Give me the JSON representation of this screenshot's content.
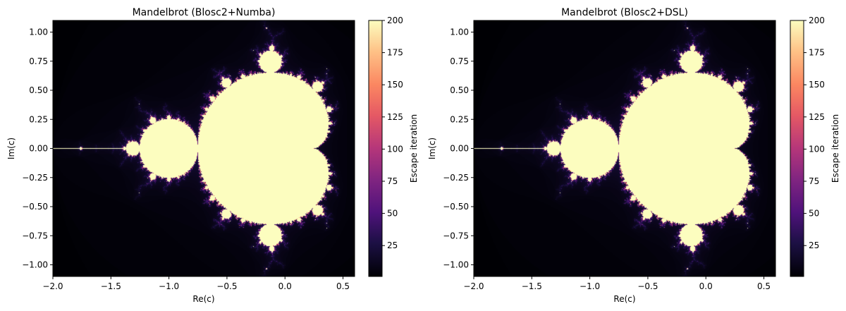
{
  "chart_data": [
    {
      "type": "heatmap",
      "title": "Mandelbrot (Blosc2+Numba)",
      "xlabel": "Re(c)",
      "ylabel": "Im(c)",
      "xlim": [
        -2.0,
        0.6
      ],
      "ylim": [
        -1.1,
        1.1
      ],
      "xticks": [
        -2.0,
        -1.5,
        -1.0,
        -0.5,
        0.0,
        0.5
      ],
      "xtick_labels": [
        "−2.0",
        "−1.5",
        "−1.0",
        "−0.5",
        "0.0",
        "0.5"
      ],
      "yticks": [
        -1.0,
        -0.75,
        -0.5,
        -0.25,
        0.0,
        0.25,
        0.5,
        0.75,
        1.0
      ],
      "ytick_labels": [
        "−1.00",
        "−0.75",
        "−0.50",
        "−0.25",
        "0.00",
        "0.25",
        "0.50",
        "0.75",
        "1.00"
      ],
      "max_iter": 200,
      "colormap": "magma",
      "colorbar": {
        "label": "Escape iteration",
        "range": [
          1,
          200
        ],
        "ticks": [
          25,
          50,
          75,
          100,
          125,
          150,
          175,
          200
        ],
        "tick_labels": [
          "25",
          "50",
          "75",
          "100",
          "125",
          "150",
          "175",
          "200"
        ]
      }
    },
    {
      "type": "heatmap",
      "title": "Mandelbrot (Blosc2+DSL)",
      "xlabel": "Re(c)",
      "ylabel": "Im(c)",
      "xlim": [
        -2.0,
        0.6
      ],
      "ylim": [
        -1.1,
        1.1
      ],
      "xticks": [
        -2.0,
        -1.5,
        -1.0,
        -0.5,
        0.0,
        0.5
      ],
      "xtick_labels": [
        "−2.0",
        "−1.5",
        "−1.0",
        "−0.5",
        "0.0",
        "0.5"
      ],
      "yticks": [
        -1.0,
        -0.75,
        -0.5,
        -0.25,
        0.0,
        0.25,
        0.5,
        0.75,
        1.0
      ],
      "ytick_labels": [
        "−1.00",
        "−0.75",
        "−0.50",
        "−0.25",
        "0.00",
        "0.25",
        "0.50",
        "0.75",
        "1.00"
      ],
      "max_iter": 200,
      "colormap": "magma",
      "colorbar": {
        "label": "Escape iteration",
        "range": [
          1,
          200
        ],
        "ticks": [
          25,
          50,
          75,
          100,
          125,
          150,
          175,
          200
        ],
        "tick_labels": [
          "25",
          "50",
          "75",
          "100",
          "125",
          "150",
          "175",
          "200"
        ]
      }
    }
  ]
}
